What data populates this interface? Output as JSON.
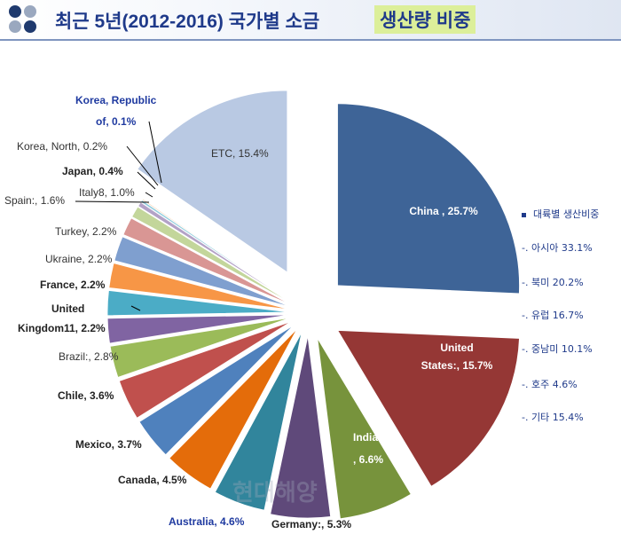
{
  "header": {
    "title_main": "최근 5년(2012-2016) 국가별 소금",
    "title_highlight": "생산량 비중"
  },
  "chart_data": {
    "type": "pie",
    "slices": [
      {
        "label": "China , 25.7%",
        "value": 25.7,
        "color": "#3e6497"
      },
      {
        "label": "United States:, 15.7%",
        "value": 15.7,
        "color": "#953735"
      },
      {
        "label": "India:e , 6.6%",
        "value": 6.6,
        "color": "#77933c"
      },
      {
        "label": "Germany:, 5.3%",
        "value": 5.3,
        "color": "#5f497a"
      },
      {
        "label": "Australia, 4.6%",
        "value": 4.6,
        "color": "#31859c"
      },
      {
        "label": "Canada, 4.5%",
        "value": 4.5,
        "color": "#e46c0a"
      },
      {
        "label": "Mexico, 3.7%",
        "value": 3.7,
        "color": "#4f81bd"
      },
      {
        "label": "Chile, 3.6%",
        "value": 3.6,
        "color": "#c0504d"
      },
      {
        "label": "Brazil:, 2.8%",
        "value": 2.8,
        "color": "#9bbb59"
      },
      {
        "label": "United Kingdom11, 2.2%",
        "value": 2.2,
        "color": "#8064a2"
      },
      {
        "label": "France, 2.2%",
        "value": 2.2,
        "color": "#4bacc6"
      },
      {
        "label": "Ukraine, 2.2%",
        "value": 2.2,
        "color": "#f79646"
      },
      {
        "label": "Turkey, 2.2%",
        "value": 2.2,
        "color": "#7f9fcf"
      },
      {
        "label": "Spain:, 1.6%",
        "value": 1.6,
        "color": "#d99694"
      },
      {
        "label": "Italy8, 1.0%",
        "value": 1.0,
        "color": "#c3d69b"
      },
      {
        "label": "Japan, 0.4%",
        "value": 0.4,
        "color": "#b3a2c7"
      },
      {
        "label": "Korea, North, 0.2%",
        "value": 0.2,
        "color": "#93cddd"
      },
      {
        "label": "Korea, Republic of, 0.1%",
        "value": 0.1,
        "color": "#fac090"
      },
      {
        "label": "ETC, 15.4%",
        "value": 15.4,
        "color": "#b9c9e3"
      }
    ],
    "legend": {
      "title": "대륙별 생산비중",
      "items": [
        "-. 아시아 33.1%",
        "-. 북미 20.2%",
        "-. 유럽 16.7%",
        "-. 중남미 10.1%",
        "-. 호주 4.6%",
        "-. 기타 15.4%"
      ]
    }
  },
  "watermark": "현대해양"
}
